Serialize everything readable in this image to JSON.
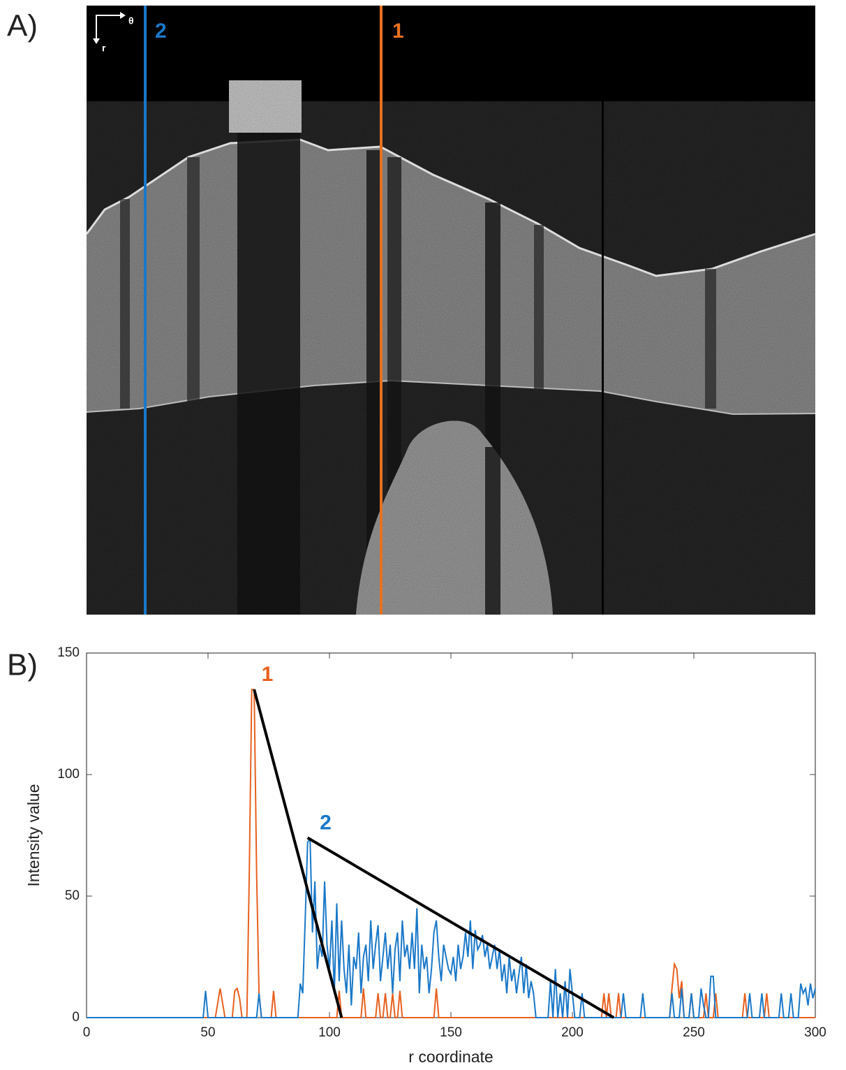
{
  "panel_a": {
    "label": "A)",
    "axis_theta": "θ",
    "axis_r": "r",
    "lines": [
      {
        "label": "2",
        "color": "#1a78c8"
      },
      {
        "label": "1",
        "color": "#e8711f"
      }
    ]
  },
  "chart_data": {
    "type": "line",
    "panel_label": "B)",
    "xlabel": "r coordinate",
    "ylabel": "Intensity value",
    "xlim": [
      0,
      300
    ],
    "ylim": [
      0,
      150
    ],
    "xticks": [
      0,
      50,
      100,
      150,
      200,
      250,
      300
    ],
    "yticks": [
      0,
      50,
      100,
      150
    ],
    "series": [
      {
        "name": "1",
        "color": "#e8601f",
        "x": [
          0,
          53,
          55,
          57,
          60,
          61,
          62,
          63,
          64,
          66,
          67,
          68,
          69,
          70,
          71,
          72,
          76,
          77,
          78,
          103,
          104,
          105,
          113,
          114,
          115,
          119,
          120,
          121,
          122,
          123,
          124,
          125,
          126,
          127,
          128,
          129,
          130,
          143,
          144,
          145,
          212,
          213,
          214,
          215,
          216,
          218,
          219,
          220,
          240,
          241,
          242,
          243,
          244,
          245,
          246,
          248,
          249,
          250,
          254,
          255,
          256,
          258,
          259,
          260,
          270,
          271,
          272,
          279,
          280,
          281,
          300
        ],
        "values": [
          0,
          0,
          12,
          0,
          0,
          11,
          12,
          8,
          0,
          0,
          60,
          135,
          135,
          60,
          10,
          0,
          0,
          11,
          0,
          0,
          11,
          0,
          0,
          12,
          0,
          0,
          10,
          0,
          0,
          10,
          0,
          0,
          10,
          0,
          0,
          11,
          0,
          0,
          12,
          0,
          0,
          10,
          0,
          10,
          0,
          0,
          10,
          0,
          0,
          12,
          22,
          20,
          8,
          15,
          0,
          0,
          10,
          0,
          0,
          10,
          0,
          0,
          10,
          0,
          0,
          10,
          0,
          0,
          10,
          0,
          0
        ]
      },
      {
        "name": "2",
        "color": "#1a78c8",
        "x": [
          0,
          48,
          49,
          50,
          70,
          71,
          72,
          87,
          88,
          89,
          90,
          91,
          92,
          93,
          94,
          95,
          96,
          97,
          98,
          99,
          100,
          101,
          102,
          103,
          104,
          105,
          106,
          107,
          108,
          109,
          110,
          111,
          112,
          113,
          114,
          115,
          116,
          117,
          118,
          119,
          120,
          121,
          122,
          123,
          124,
          125,
          126,
          127,
          128,
          129,
          130,
          131,
          132,
          133,
          134,
          135,
          136,
          137,
          138,
          139,
          140,
          141,
          142,
          143,
          144,
          145,
          146,
          147,
          148,
          149,
          150,
          151,
          152,
          153,
          154,
          155,
          156,
          157,
          158,
          159,
          160,
          161,
          162,
          163,
          164,
          165,
          166,
          167,
          168,
          169,
          170,
          171,
          172,
          173,
          174,
          175,
          176,
          177,
          178,
          179,
          180,
          181,
          182,
          183,
          184,
          185,
          190,
          191,
          192,
          193,
          194,
          195,
          196,
          197,
          198,
          199,
          200,
          201,
          203,
          204,
          205,
          220,
          221,
          222,
          228,
          229,
          230,
          240,
          241,
          242,
          244,
          245,
          246,
          248,
          249,
          250,
          252,
          253,
          254,
          255,
          256,
          257,
          258,
          259,
          272,
          273,
          274,
          277,
          278,
          279,
          285,
          286,
          287,
          289,
          290,
          291,
          293,
          294,
          295,
          296,
          297,
          298,
          299,
          300
        ],
        "values": [
          0,
          0,
          11,
          0,
          0,
          10,
          0,
          0,
          14,
          10,
          40,
          72,
          74,
          35,
          56,
          20,
          30,
          25,
          56,
          30,
          20,
          40,
          10,
          47,
          15,
          40,
          20,
          10,
          30,
          5,
          25,
          20,
          35,
          10,
          25,
          30,
          15,
          40,
          20,
          30,
          38,
          15,
          25,
          35,
          20,
          30,
          10,
          28,
          35,
          15,
          40,
          25,
          30,
          20,
          35,
          20,
          45,
          10,
          30,
          20,
          25,
          10,
          20,
          35,
          40,
          25,
          15,
          30,
          25,
          20,
          18,
          25,
          15,
          30,
          20,
          25,
          35,
          25,
          40,
          20,
          36,
          28,
          30,
          34,
          25,
          30,
          20,
          25,
          30,
          20,
          28,
          15,
          22,
          10,
          25,
          15,
          20,
          10,
          18,
          25,
          10,
          22,
          8,
          15,
          10,
          0,
          0,
          15,
          0,
          20,
          0,
          10,
          0,
          15,
          0,
          20,
          10,
          0,
          0,
          10,
          0,
          0,
          10,
          0,
          0,
          10,
          0,
          0,
          10,
          0,
          0,
          12,
          0,
          0,
          10,
          0,
          0,
          12,
          5,
          0,
          0,
          17,
          17,
          0,
          0,
          10,
          0,
          0,
          10,
          0,
          0,
          10,
          0,
          0,
          10,
          0,
          0,
          14,
          10,
          12,
          5,
          14,
          8,
          12
        ]
      }
    ],
    "lines": [
      {
        "x": [
          69,
          105
        ],
        "y": [
          135,
          0
        ],
        "color": "#000000"
      },
      {
        "x": [
          91,
          217
        ],
        "y": [
          74,
          0
        ],
        "color": "#000000"
      }
    ]
  }
}
